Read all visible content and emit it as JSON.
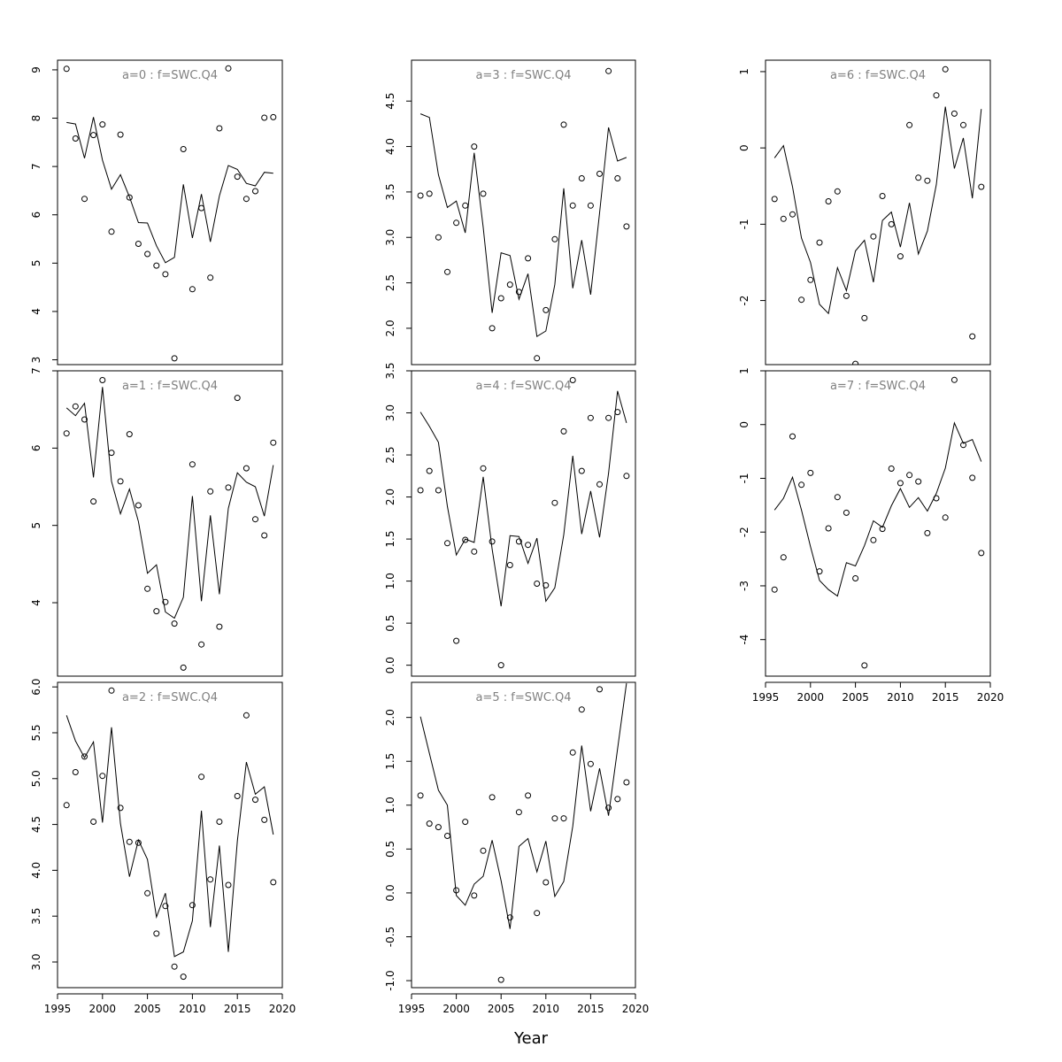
{
  "figure": {
    "xlabel": "Year"
  },
  "chart_data": [
    {
      "type": "scatter",
      "title": "a=0  :  f=SWC.Q4",
      "xlabel": "",
      "ylabel": "",
      "xlim": [
        1995,
        2020
      ],
      "ylim": [
        2.9,
        9.2
      ],
      "yticks": [
        "3",
        "4",
        "5",
        "6",
        "7",
        "8",
        "9"
      ],
      "x": [
        1996,
        1997,
        1998,
        1999,
        2000,
        2001,
        2002,
        2003,
        2004,
        2005,
        2006,
        2007,
        2008,
        2009,
        2010,
        2011,
        2012,
        2013,
        2014,
        2015,
        2016,
        2017,
        2018,
        2019
      ],
      "series": [
        {
          "kind": "points",
          "values": [
            9.02,
            7.58,
            6.33,
            7.65,
            7.87,
            5.65,
            7.66,
            6.36,
            5.4,
            5.19,
            4.95,
            4.77,
            3.03,
            7.36,
            4.46,
            6.14,
            4.7,
            7.79,
            9.03,
            6.79,
            6.33,
            6.49,
            8.01,
            8.02
          ]
        },
        {
          "kind": "line",
          "values": [
            7.91,
            7.88,
            7.17,
            8.02,
            7.13,
            6.53,
            6.83,
            6.37,
            5.84,
            5.83,
            5.36,
            5.01,
            5.12,
            6.63,
            5.52,
            6.43,
            5.44,
            6.39,
            7.02,
            6.94,
            6.65,
            6.6,
            6.88,
            6.86
          ]
        }
      ]
    },
    {
      "type": "scatter",
      "title": "a=1  :  f=SWC.Q4",
      "xlabel": "",
      "ylabel": "",
      "xlim": [
        1995,
        2020
      ],
      "ylim": [
        3.05,
        7.0
      ],
      "yticks": [
        "4",
        "5",
        "6",
        "7"
      ],
      "x": [
        1996,
        1997,
        1998,
        1999,
        2000,
        2001,
        2002,
        2003,
        2004,
        2005,
        2006,
        2007,
        2008,
        2009,
        2010,
        2011,
        2012,
        2013,
        2014,
        2015,
        2016,
        2017,
        2018,
        2019
      ],
      "series": [
        {
          "kind": "points",
          "values": [
            6.19,
            6.54,
            6.37,
            5.31,
            6.88,
            5.94,
            5.57,
            6.18,
            5.26,
            4.18,
            3.89,
            4.01,
            3.73,
            3.16,
            5.79,
            3.46,
            5.44,
            3.69,
            5.49,
            6.65,
            5.74,
            5.08,
            4.87,
            6.07
          ]
        },
        {
          "kind": "line",
          "values": [
            6.52,
            6.42,
            6.58,
            5.62,
            6.79,
            5.57,
            5.15,
            5.47,
            5.05,
            4.38,
            4.49,
            3.88,
            3.8,
            4.07,
            5.38,
            4.02,
            5.13,
            4.11,
            5.22,
            5.68,
            5.56,
            5.5,
            5.12,
            5.78
          ]
        }
      ]
    },
    {
      "type": "scatter",
      "title": "a=2  :  f=SWC.Q4",
      "xlabel": "",
      "ylabel": "",
      "xlim": [
        1995,
        2020
      ],
      "ylim": [
        2.72,
        6.05
      ],
      "xticks": [
        "1995",
        "2000",
        "2005",
        "2010",
        "2015",
        "2020"
      ],
      "yticks": [
        "3.0",
        "3.5",
        "4.0",
        "4.5",
        "5.0",
        "5.5",
        "6.0"
      ],
      "x": [
        1996,
        1997,
        1998,
        1999,
        2000,
        2001,
        2002,
        2003,
        2004,
        2005,
        2006,
        2007,
        2008,
        2009,
        2010,
        2011,
        2012,
        2013,
        2014,
        2015,
        2016,
        2017,
        2018,
        2019
      ],
      "series": [
        {
          "kind": "points",
          "values": [
            4.71,
            5.07,
            5.24,
            4.53,
            5.03,
            5.96,
            4.68,
            4.31,
            4.3,
            3.75,
            3.31,
            3.61,
            2.95,
            2.84,
            3.62,
            5.02,
            3.9,
            4.53,
            3.84,
            4.81,
            5.69,
            4.77,
            4.55,
            3.87
          ]
        },
        {
          "kind": "line",
          "values": [
            5.69,
            5.41,
            5.23,
            5.4,
            4.52,
            5.56,
            4.51,
            3.93,
            4.33,
            4.12,
            3.49,
            3.75,
            3.06,
            3.11,
            3.45,
            4.65,
            3.38,
            4.27,
            3.11,
            4.32,
            5.18,
            4.83,
            4.91,
            4.39
          ]
        }
      ]
    },
    {
      "type": "scatter",
      "title": "a=3  :  f=SWC.Q4",
      "xlabel": "",
      "ylabel": "",
      "xlim": [
        1995,
        2020
      ],
      "ylim": [
        1.6,
        4.95
      ],
      "yticks": [
        "2.0",
        "2.5",
        "3.0",
        "3.5",
        "4.0",
        "4.5"
      ],
      "x": [
        1996,
        1997,
        1998,
        1999,
        2000,
        2001,
        2002,
        2003,
        2004,
        2005,
        2006,
        2007,
        2008,
        2009,
        2010,
        2011,
        2012,
        2013,
        2014,
        2015,
        2016,
        2017,
        2018,
        2019
      ],
      "series": [
        {
          "kind": "points",
          "values": [
            3.46,
            3.48,
            3.0,
            2.62,
            3.16,
            3.35,
            4.0,
            3.48,
            2.0,
            2.33,
            2.48,
            2.4,
            2.77,
            1.67,
            2.2,
            2.98,
            4.24,
            3.35,
            3.65,
            3.35,
            3.7,
            4.83,
            3.65,
            3.12
          ]
        },
        {
          "kind": "line",
          "values": [
            4.36,
            4.32,
            3.69,
            3.33,
            3.4,
            3.05,
            3.93,
            3.11,
            2.17,
            2.83,
            2.8,
            2.32,
            2.6,
            1.91,
            1.97,
            2.48,
            3.54,
            2.44,
            2.97,
            2.37,
            3.27,
            4.21,
            3.84,
            3.88
          ]
        }
      ]
    },
    {
      "type": "scatter",
      "title": "a=4  :  f=SWC.Q4",
      "xlabel": "",
      "ylabel": "",
      "xlim": [
        1995,
        2020
      ],
      "ylim": [
        -0.13,
        3.5
      ],
      "yticks": [
        "0.0",
        "0.5",
        "1.0",
        "1.5",
        "2.0",
        "2.5",
        "3.0",
        "3.5"
      ],
      "x": [
        1996,
        1997,
        1998,
        1999,
        2000,
        2001,
        2002,
        2003,
        2004,
        2005,
        2006,
        2007,
        2008,
        2009,
        2010,
        2011,
        2012,
        2013,
        2014,
        2015,
        2016,
        2017,
        2018,
        2019
      ],
      "series": [
        {
          "kind": "points",
          "values": [
            2.08,
            2.31,
            2.08,
            1.45,
            0.29,
            1.49,
            1.35,
            2.34,
            1.47,
            0.0,
            1.19,
            1.47,
            1.43,
            0.97,
            0.95,
            1.93,
            2.78,
            3.39,
            2.31,
            2.94,
            2.15,
            2.94,
            3.01,
            2.25
          ]
        },
        {
          "kind": "line",
          "values": [
            3.01,
            2.84,
            2.65,
            1.89,
            1.31,
            1.5,
            1.46,
            2.24,
            1.38,
            0.7,
            1.54,
            1.53,
            1.21,
            1.51,
            0.76,
            0.92,
            1.55,
            2.49,
            1.56,
            2.07,
            1.52,
            2.28,
            3.26,
            2.88
          ]
        }
      ]
    },
    {
      "type": "scatter",
      "title": "a=5  :  f=SWC.Q4",
      "xlabel": "",
      "ylabel": "",
      "xlim": [
        1995,
        2020
      ],
      "ylim": [
        -1.08,
        2.4
      ],
      "xticks": [
        "1995",
        "2000",
        "2005",
        "2010",
        "2015",
        "2020"
      ],
      "yticks": [
        "-1.0",
        "-0.5",
        "0.0",
        "0.5",
        "1.0",
        "1.5",
        "2.0"
      ],
      "x": [
        1996,
        1997,
        1998,
        1999,
        2000,
        2001,
        2002,
        2003,
        2004,
        2005,
        2006,
        2007,
        2008,
        2009,
        2010,
        2011,
        2012,
        2013,
        2014,
        2015,
        2016,
        2017,
        2018,
        2019
      ],
      "series": [
        {
          "kind": "points",
          "values": [
            1.11,
            0.79,
            0.75,
            0.65,
            0.03,
            0.81,
            -0.03,
            0.48,
            1.09,
            -0.99,
            -0.28,
            0.92,
            1.11,
            -0.23,
            0.12,
            0.85,
            0.85,
            1.6,
            2.09,
            1.47,
            2.32,
            0.97,
            1.07,
            1.26
          ]
        },
        {
          "kind": "line",
          "values": [
            2.01,
            1.59,
            1.17,
            1.0,
            -0.03,
            -0.14,
            0.1,
            0.19,
            0.6,
            0.14,
            -0.41,
            0.53,
            0.62,
            0.24,
            0.59,
            -0.04,
            0.13,
            0.76,
            1.68,
            0.93,
            1.42,
            0.88,
            1.64,
            2.39
          ]
        }
      ]
    },
    {
      "type": "scatter",
      "title": "a=6  :  f=SWC.Q4",
      "xlabel": "",
      "ylabel": "",
      "xlim": [
        1995,
        2020
      ],
      "ylim": [
        -2.84,
        1.15
      ],
      "yticks": [
        "-2",
        "-1",
        "0",
        "1"
      ],
      "x": [
        1996,
        1997,
        1998,
        1999,
        2000,
        2001,
        2002,
        2003,
        2004,
        2005,
        2006,
        2007,
        2008,
        2009,
        2010,
        2011,
        2012,
        2013,
        2014,
        2015,
        2016,
        2017,
        2018,
        2019
      ],
      "series": [
        {
          "kind": "points",
          "values": [
            -0.67,
            -0.93,
            -0.87,
            -1.99,
            -1.73,
            -1.24,
            -0.7,
            -0.57,
            -1.94,
            -2.83,
            -2.23,
            -1.16,
            -0.63,
            -1.0,
            -1.42,
            0.3,
            -0.39,
            -0.43,
            0.69,
            1.03,
            0.45,
            0.3,
            -2.47,
            -0.51
          ]
        },
        {
          "kind": "line",
          "values": [
            -0.13,
            0.03,
            -0.51,
            -1.18,
            -1.5,
            -2.05,
            -2.17,
            -1.57,
            -1.87,
            -1.35,
            -1.21,
            -1.76,
            -0.95,
            -0.84,
            -1.3,
            -0.72,
            -1.39,
            -1.09,
            -0.48,
            0.54,
            -0.27,
            0.13,
            -0.66,
            0.51
          ]
        }
      ]
    },
    {
      "type": "scatter",
      "title": "a=7  :  f=SWC.Q4",
      "xlabel": "",
      "ylabel": "",
      "xlim": [
        1995,
        2020
      ],
      "ylim": [
        -4.68,
        1.0
      ],
      "xticks": [
        "1995",
        "2000",
        "2005",
        "2010",
        "2015",
        "2020"
      ],
      "yticks": [
        "-4",
        "-3",
        "-2",
        "-1",
        "0",
        "1"
      ],
      "x": [
        1996,
        1997,
        1998,
        1999,
        2000,
        2001,
        2002,
        2003,
        2004,
        2005,
        2006,
        2007,
        2008,
        2009,
        2010,
        2011,
        2012,
        2013,
        2014,
        2015,
        2016,
        2017,
        2018,
        2019
      ],
      "series": [
        {
          "kind": "points",
          "values": [
            -3.07,
            -2.47,
            -0.22,
            -1.12,
            -0.9,
            -2.73,
            -1.93,
            -1.35,
            -1.64,
            -2.86,
            -4.48,
            -2.15,
            -1.94,
            -0.82,
            -1.09,
            -0.94,
            -1.06,
            -2.02,
            -1.37,
            -1.73,
            0.83,
            -0.38,
            -0.99,
            -2.39
          ]
        },
        {
          "kind": "line",
          "values": [
            -1.59,
            -1.37,
            -0.98,
            -1.59,
            -2.27,
            -2.9,
            -3.07,
            -3.19,
            -2.57,
            -2.63,
            -2.25,
            -1.79,
            -1.91,
            -1.51,
            -1.19,
            -1.54,
            -1.36,
            -1.61,
            -1.28,
            -0.81,
            0.03,
            -0.35,
            -0.28,
            -0.69
          ]
        }
      ]
    }
  ]
}
